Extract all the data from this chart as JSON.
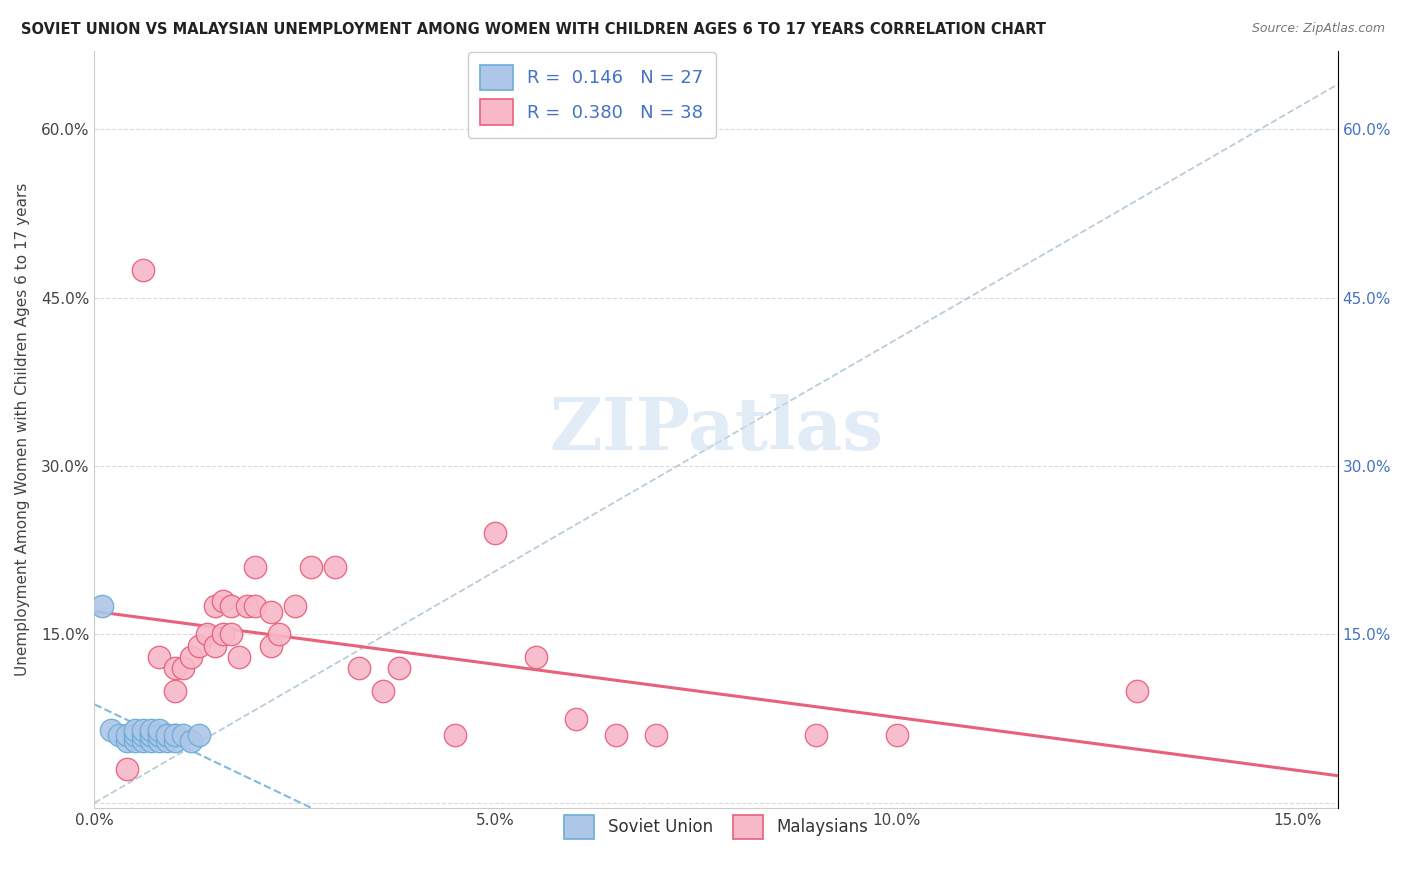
{
  "title": "SOVIET UNION VS MALAYSIAN UNEMPLOYMENT AMONG WOMEN WITH CHILDREN AGES 6 TO 17 YEARS CORRELATION CHART",
  "source": "Source: ZipAtlas.com",
  "ylabel": "Unemployment Among Women with Children Ages 6 to 17 years",
  "xlim": [
    0.0,
    0.155
  ],
  "ylim": [
    -0.005,
    0.67
  ],
  "x_ticks": [
    0.0,
    0.05,
    0.1,
    0.15
  ],
  "x_tick_labels": [
    "0.0%",
    "5.0%",
    "10.0%",
    "15.0%"
  ],
  "y_ticks": [
    0.0,
    0.15,
    0.3,
    0.45,
    0.6
  ],
  "y_tick_labels_left": [
    "",
    "15.0%",
    "30.0%",
    "45.0%",
    "60.0%"
  ],
  "y_tick_labels_right": [
    "",
    "15.0%",
    "30.0%",
    "45.0%",
    "60.0%"
  ],
  "legend_r1": "0.146",
  "legend_n1": "27",
  "legend_r2": "0.380",
  "legend_n2": "38",
  "soviet_fill_color": "#aec6e8",
  "soviet_edge_color": "#6aaed6",
  "malaysian_fill_color": "#f7b8c8",
  "malaysian_edge_color": "#e8607a",
  "soviet_trend_color": "#6aaed6",
  "malaysian_trend_color": "#e8607a",
  "diagonal_color": "#b0c8d8",
  "watermark_color": "#cde0f0",
  "grid_color": "#d8d8d8",
  "soviet_scatter_x": [
    0.001,
    0.002,
    0.003,
    0.004,
    0.004,
    0.005,
    0.005,
    0.005,
    0.006,
    0.006,
    0.006,
    0.007,
    0.007,
    0.007,
    0.007,
    0.008,
    0.008,
    0.008,
    0.008,
    0.009,
    0.009,
    0.009,
    0.01,
    0.01,
    0.011,
    0.012,
    0.013
  ],
  "soviet_scatter_y": [
    0.175,
    0.065,
    0.06,
    0.055,
    0.06,
    0.055,
    0.06,
    0.065,
    0.055,
    0.06,
    0.065,
    0.055,
    0.06,
    0.06,
    0.065,
    0.055,
    0.06,
    0.06,
    0.065,
    0.055,
    0.06,
    0.06,
    0.055,
    0.06,
    0.06,
    0.055,
    0.06
  ],
  "malaysian_scatter_x": [
    0.004,
    0.006,
    0.008,
    0.01,
    0.01,
    0.01,
    0.011,
    0.012,
    0.013,
    0.014,
    0.015,
    0.015,
    0.016,
    0.016,
    0.017,
    0.017,
    0.018,
    0.019,
    0.02,
    0.02,
    0.022,
    0.022,
    0.023,
    0.025,
    0.027,
    0.03,
    0.033,
    0.036,
    0.038,
    0.045,
    0.05,
    0.055,
    0.06,
    0.065,
    0.07,
    0.09,
    0.1,
    0.13
  ],
  "malaysian_scatter_y": [
    0.03,
    0.475,
    0.13,
    0.06,
    0.1,
    0.12,
    0.12,
    0.13,
    0.14,
    0.15,
    0.14,
    0.175,
    0.18,
    0.15,
    0.15,
    0.175,
    0.13,
    0.175,
    0.175,
    0.21,
    0.14,
    0.17,
    0.15,
    0.175,
    0.21,
    0.21,
    0.12,
    0.1,
    0.12,
    0.06,
    0.24,
    0.13,
    0.075,
    0.06,
    0.06,
    0.06,
    0.06,
    0.1
  ]
}
